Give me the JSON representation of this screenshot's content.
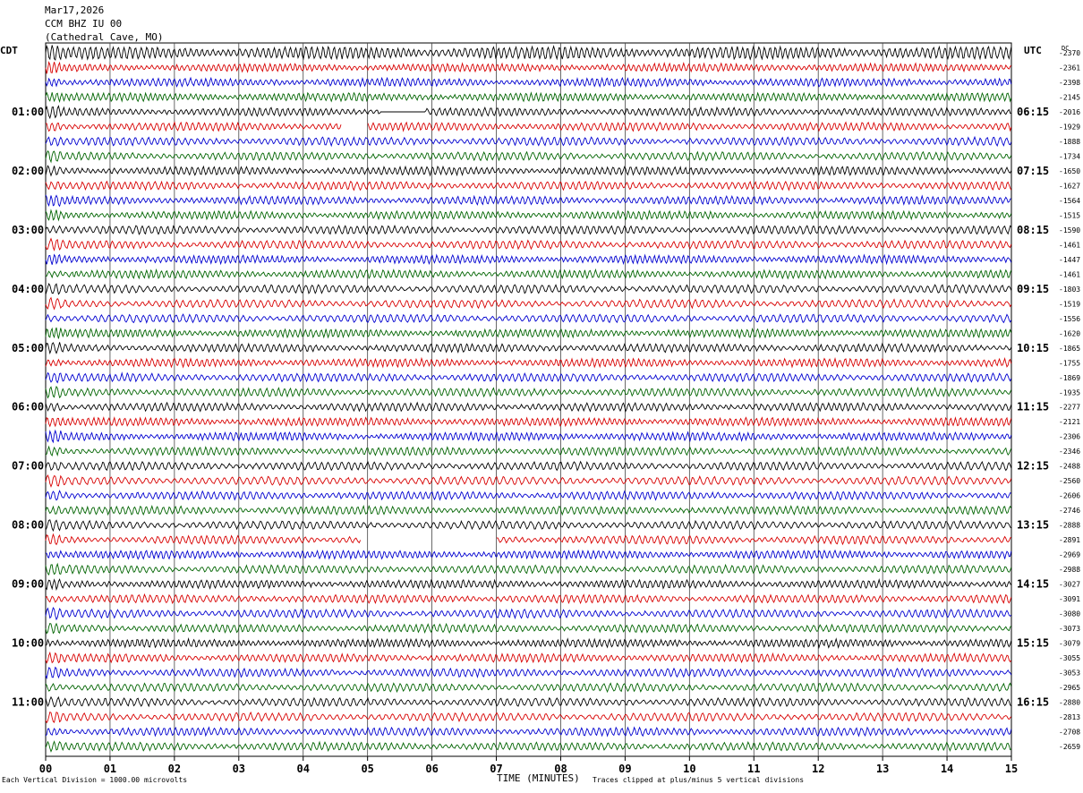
{
  "header": {
    "date": "Mar17,2026",
    "station": "CCM BHZ IU 00",
    "location": "(Cathedral Cave, MO)"
  },
  "tz_left": "CDT",
  "tz_right": "UTC",
  "dc_label": "DC",
  "footer": {
    "scale": "Each Vertical Division = 1000.00 microvolts",
    "xlabel": "TIME (MINUTES)",
    "clip": "Traces clipped at plus/minus 5 vertical divisions"
  },
  "colors": {
    "trace": [
      "#000000",
      "#d80000",
      "#0000d0",
      "#006400"
    ],
    "grid": "#000000"
  },
  "chart_data": {
    "type": "line",
    "xlabel": "TIME (MINUTES)",
    "xlim": [
      0,
      15
    ],
    "x_ticks": [
      "00",
      "01",
      "02",
      "03",
      "04",
      "05",
      "06",
      "07",
      "08",
      "09",
      "10",
      "11",
      "12",
      "13",
      "14",
      "15"
    ],
    "rows_per_hour": 4,
    "left_hour_labels": [
      "01:00",
      "02:00",
      "03:00",
      "04:00",
      "05:00",
      "06:00",
      "07:00",
      "08:00",
      "09:00",
      "10:00",
      "11:00"
    ],
    "right_hour_labels": [
      "06:15",
      "07:15",
      "08:15",
      "09:15",
      "10:15",
      "11:15",
      "12:15",
      "13:15",
      "14:15",
      "15:15",
      "16:15"
    ],
    "dc_offsets": [
      "-2370",
      "-2361",
      "-2398",
      "-2145",
      "-2016",
      "-1929",
      "-1888",
      "-1734",
      "-1650",
      "-1627",
      "-1564",
      "-1515",
      "-1590",
      "-1461",
      "-1447",
      "-1461",
      "-1803",
      "-1519",
      "-1556",
      "-1620",
      "-1865",
      "-1755",
      "-1869",
      "-1935",
      "-2277",
      "-2121",
      "-2306",
      "-2346",
      "-2488",
      "-2560",
      "-2606",
      "-2746",
      "-2888",
      "-2891",
      "-2969",
      "-2988",
      "-3027",
      "-3091",
      "-3080",
      "-3073",
      "-3079",
      "-3055",
      "-3053",
      "-2965",
      "-2880",
      "-2813",
      "-2708",
      "-2659"
    ],
    "gaps": [
      {
        "row": 4,
        "start": 5.2,
        "end": 5.9
      },
      {
        "row": 5,
        "start": 4.6,
        "end": 5.0
      },
      {
        "row": 33,
        "start": 4.9,
        "end": 7.0
      }
    ]
  }
}
